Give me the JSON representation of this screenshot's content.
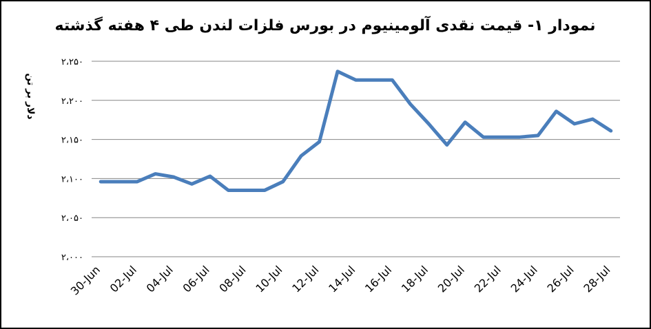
{
  "chart_data": {
    "type": "line",
    "title": "نمودار ۱- قیمت نقدی آلومینیوم در بورس فلزات لندن طی ۴ هفته گذشته",
    "y_label": "دلار بر تن",
    "categories": [
      "30-Jun",
      null,
      "02-Jul",
      null,
      "04-Jul",
      null,
      "06-Jul",
      null,
      "08-Jul",
      null,
      "10-Jul",
      null,
      "12-Jul",
      null,
      "14-Jul",
      null,
      "16-Jul",
      null,
      "18-Jul",
      null,
      "20-Jul",
      null,
      "22-Jul",
      null,
      "24-Jul",
      null,
      "26-Jul",
      null,
      "28-Jul"
    ],
    "series": [
      {
        "color": "#4a7ebb",
        "values": [
          2096,
          2096,
          2096,
          2106,
          2102,
          2093,
          2103,
          2085,
          2085,
          2085,
          2096,
          2129,
          2147,
          2237,
          2226,
          2226,
          2226,
          2195,
          2170,
          2143,
          2172,
          2153,
          2153,
          2153,
          2155,
          2186,
          2170,
          2176,
          2161
        ]
      }
    ],
    "ylim": [
      2000,
      2250
    ],
    "yticks": [
      {
        "value": 2000,
        "label": "۲،۰۰۰"
      },
      {
        "value": 2050,
        "label": "۲،۰۵۰"
      },
      {
        "value": 2100,
        "label": "۲،۱۰۰"
      },
      {
        "value": 2150,
        "label": "۲،۱۵۰"
      },
      {
        "value": 2200,
        "label": "۲،۲۰۰"
      },
      {
        "value": 2250,
        "label": "۲،۲۵۰"
      }
    ],
    "grid": true
  }
}
